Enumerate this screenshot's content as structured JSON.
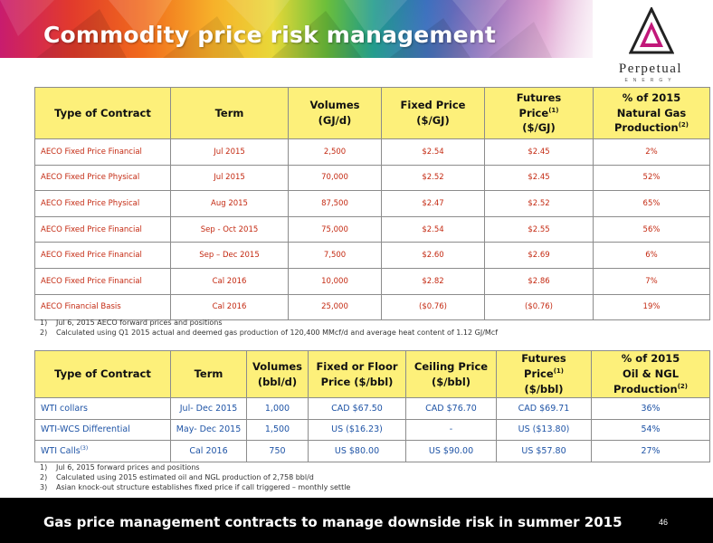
{
  "header": {
    "title": "Commodity price risk management",
    "colors": {
      "banner_start": "#c81c6e",
      "banner_mid": "#f7b12a",
      "banner_end": "#6a3aa0"
    }
  },
  "logo": {
    "icon": "perpetual-triangle-logo-icon",
    "wordmark": "Perpetual",
    "subtitle": "ENERGY"
  },
  "gas_table": {
    "header_color": "#fdf07a",
    "text_color": "#c42a12",
    "headers": [
      "Type of Contract",
      "Term",
      "Volumes",
      "(GJ/d)",
      "Fixed Price",
      "($/GJ)",
      "Futures",
      "Price",
      "(1)",
      "($/GJ)",
      "% of 2015",
      "Natural Gas",
      "Production",
      "(2)"
    ],
    "rows": [
      [
        "AECO Fixed Price Financial",
        "Jul 2015",
        "2,500",
        "$2.54",
        "$2.45",
        "2%"
      ],
      [
        "AECO Fixed Price Physical",
        "Jul 2015",
        "70,000",
        "$2.52",
        "$2.45",
        "52%"
      ],
      [
        "AECO Fixed Price Physical",
        "Aug 2015",
        "87,500",
        "$2.47",
        "$2.52",
        "65%"
      ],
      [
        "AECO Fixed Price Financial",
        "Sep - Oct 2015",
        "75,000",
        "$2.54",
        "$2.55",
        "56%"
      ],
      [
        "AECO Fixed Price Financial",
        "Sep – Dec 2015",
        "7,500",
        "$2.60",
        "$2.69",
        "6%"
      ],
      [
        "AECO Fixed Price Financial",
        "Cal 2016",
        "10,000",
        "$2.82",
        "$2.86",
        "7%"
      ],
      [
        "AECO Financial Basis",
        "Cal 2016",
        "25,000",
        "($0.76)",
        "($0.76)",
        "19%"
      ]
    ]
  },
  "gas_notes": [
    {
      "num": "1)",
      "text": "Jul 6, 2015 AECO forward prices and positions"
    },
    {
      "num": "2)",
      "text": "Calculated using Q1 2015 actual and deemed gas production of 120,400 MMcf/d and average heat content of 1.12 GJ/Mcf"
    }
  ],
  "oil_table": {
    "header_color": "#fdf07a",
    "text_color": "#1f54a6",
    "headers": [
      "Type of Contract",
      "Term",
      "Volumes",
      "(bbl/d)",
      "Fixed or Floor",
      "Price ($/bbl)",
      "Ceiling Price",
      "($/bbl)",
      "Futures",
      "Price",
      "(1)",
      "($/bbl)",
      "% of 2015",
      "Oil & NGL",
      "Production",
      "(2)"
    ],
    "rows": [
      [
        "WTI collars",
        "Jul- Dec 2015",
        "1,000",
        "CAD $67.50",
        "CAD $76.70",
        "CAD $69.71",
        "36%"
      ],
      [
        "WTI-WCS Differential",
        "May- Dec 2015",
        "1,500",
        "US ($16.23)",
        "-",
        "US ($13.80)",
        "54%"
      ],
      [
        "WTI Calls",
        "Cal 2016",
        "750",
        "US $80.00",
        "US $90.00",
        "US $57.80",
        "27%"
      ]
    ],
    "calls_marker": "(3)"
  },
  "oil_notes": [
    {
      "num": "1)",
      "text": "Jul 6, 2015 forward prices and positions"
    },
    {
      "num": "2)",
      "text": "Calculated using 2015 estimated oil and NGL production of 2,758 bbl/d"
    },
    {
      "num": "3)",
      "text": "Asian knock-out structure establishes fixed price if call triggered – monthly settle"
    }
  ],
  "footer": {
    "text": "Gas price management contracts to manage downside risk in summer 2015",
    "page_number": "46"
  }
}
